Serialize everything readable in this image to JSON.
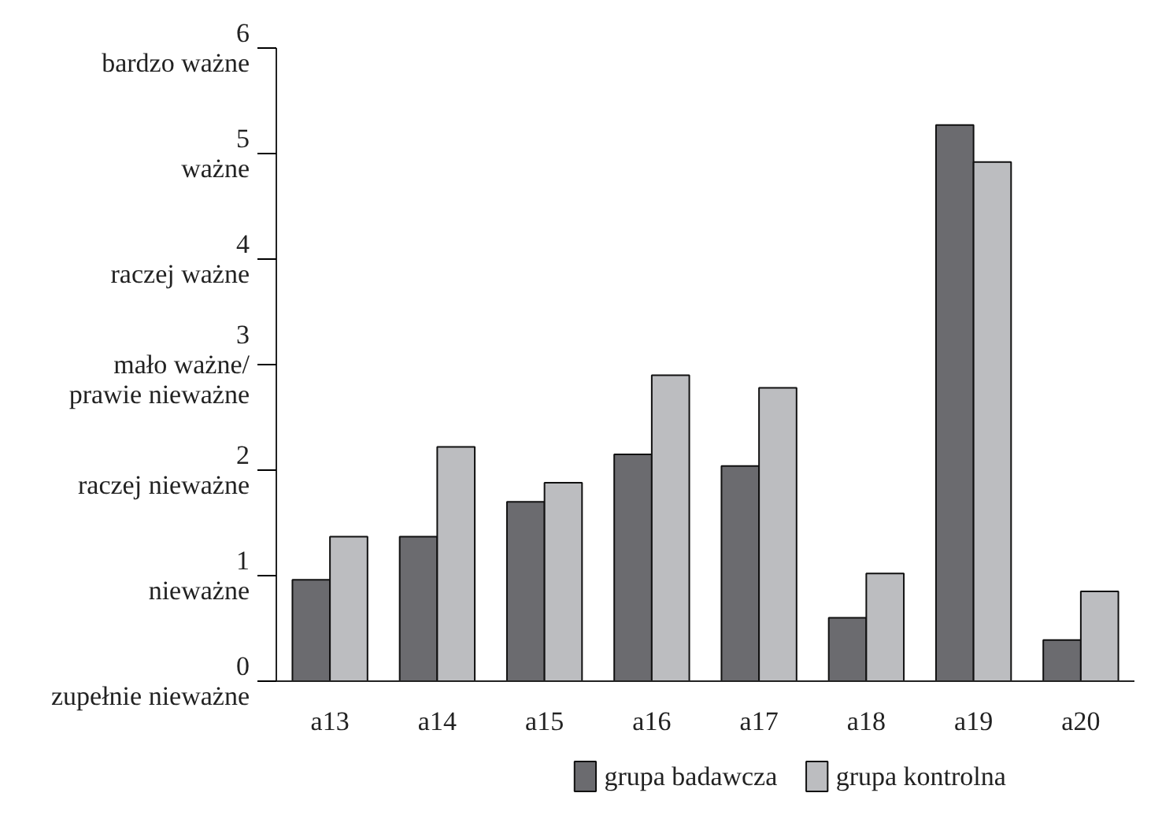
{
  "chart_data": {
    "type": "bar",
    "categories": [
      "a13",
      "a14",
      "a15",
      "a16",
      "a17",
      "a18",
      "a19",
      "a20"
    ],
    "series": [
      {
        "name": "grupa badawcza",
        "color": "#6b6b6f",
        "values": [
          0.96,
          1.37,
          1.7,
          2.15,
          2.04,
          0.6,
          5.27,
          0.39
        ]
      },
      {
        "name": "grupa kontrolna",
        "color": "#bcbdc0",
        "values": [
          1.37,
          2.22,
          1.88,
          2.9,
          2.78,
          1.02,
          4.92,
          0.85
        ]
      }
    ],
    "ylim": [
      0,
      6
    ],
    "yticks": [
      {
        "value": 0,
        "label": "0\nzupełnie nieważne"
      },
      {
        "value": 1,
        "label": "1\nnieważne"
      },
      {
        "value": 2,
        "label": "2\nraczej nieważne"
      },
      {
        "value": 3,
        "label": "3\nmało ważne/\nprawie nieważne"
      },
      {
        "value": 4,
        "label": "4\nraczej ważne"
      },
      {
        "value": 5,
        "label": "5\nważne"
      },
      {
        "value": 6,
        "label": "6\nbardzo ważne"
      }
    ],
    "grid": false,
    "legend": "bottom"
  }
}
